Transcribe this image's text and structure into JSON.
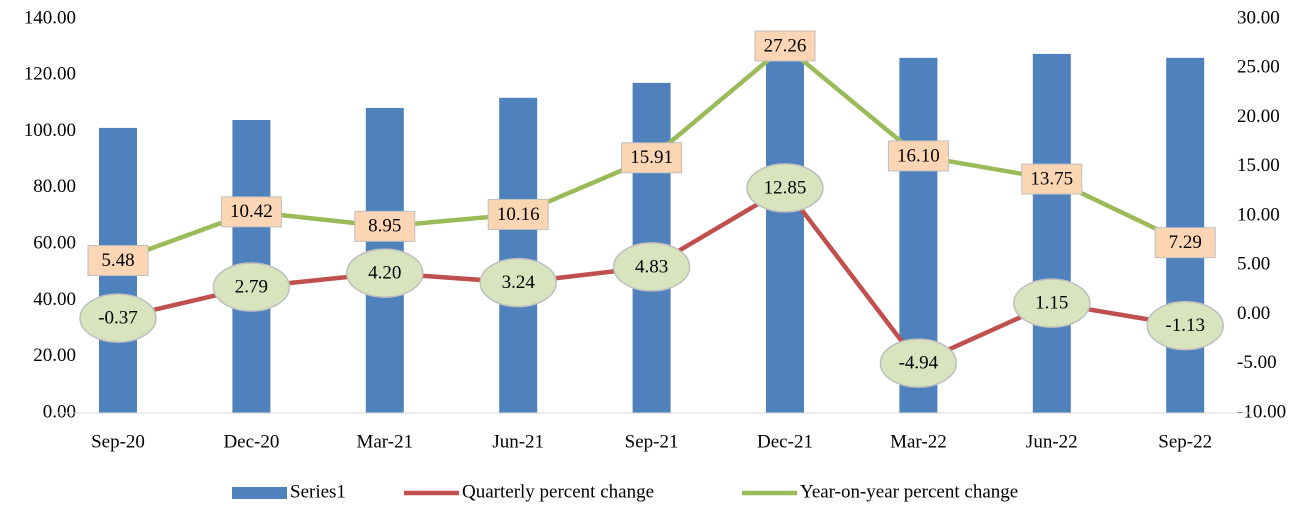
{
  "chart_data": {
    "type": "bar-line",
    "categories": [
      "Sep-20",
      "Dec-20",
      "Mar-21",
      "Jun-21",
      "Sep-21",
      "Dec-21",
      "Mar-22",
      "Jun-22",
      "Sep-22"
    ],
    "series": [
      {
        "name": "Series1",
        "type": "bar",
        "color": "#4f81bd",
        "values": [
          101.3,
          104.1,
          108.4,
          112,
          117.3,
          132,
          126.2,
          127.6,
          126.2
        ]
      },
      {
        "name": "Quarterly percent change",
        "type": "line",
        "axis": "y2",
        "color": "#c0504d",
        "values": [
          -0.37,
          2.79,
          4.2,
          3.24,
          4.83,
          12.85,
          -4.94,
          1.15,
          -1.13
        ],
        "value_labels": [
          "-0.37",
          "2.79",
          "4.20",
          "3.24",
          "4.83",
          "12.85",
          "-4.94",
          "1.15",
          "-1.13"
        ]
      },
      {
        "name": "Year-on-year percent change",
        "type": "line",
        "axis": "y2",
        "color": "#9bbb59",
        "values": [
          5.48,
          10.42,
          8.95,
          10.16,
          15.91,
          27.26,
          16.1,
          13.75,
          7.29
        ],
        "value_labels": [
          "5.48",
          "10.42",
          "8.95",
          "10.16",
          "15.91",
          "27.26",
          "16.10",
          "13.75",
          "7.29"
        ]
      }
    ],
    "ylim": [
      0,
      140
    ],
    "yticks": [
      {
        "value": 0,
        "label": "0.00"
      },
      {
        "value": 20,
        "label": "20.00"
      },
      {
        "value": 40,
        "label": "40.00"
      },
      {
        "value": 60,
        "label": "60.00"
      },
      {
        "value": 80,
        "label": "80.00"
      },
      {
        "value": 100,
        "label": "100.00"
      },
      {
        "value": 120,
        "label": "120.00"
      },
      {
        "value": 140,
        "label": "140.00"
      }
    ],
    "y2lim": [
      -10,
      30
    ],
    "y2ticks": [
      {
        "value": -10,
        "label": "-10.00"
      },
      {
        "value": -5,
        "label": "-5.00"
      },
      {
        "value": 0,
        "label": "0.00"
      },
      {
        "value": 5,
        "label": "5.00"
      },
      {
        "value": 10,
        "label": "10.00"
      },
      {
        "value": 15,
        "label": "15.00"
      },
      {
        "value": 20,
        "label": "20.00"
      },
      {
        "value": 25,
        "label": "25.00"
      },
      {
        "value": 30,
        "label": "30.00"
      }
    ],
    "grid": false,
    "legend": "bottom"
  }
}
